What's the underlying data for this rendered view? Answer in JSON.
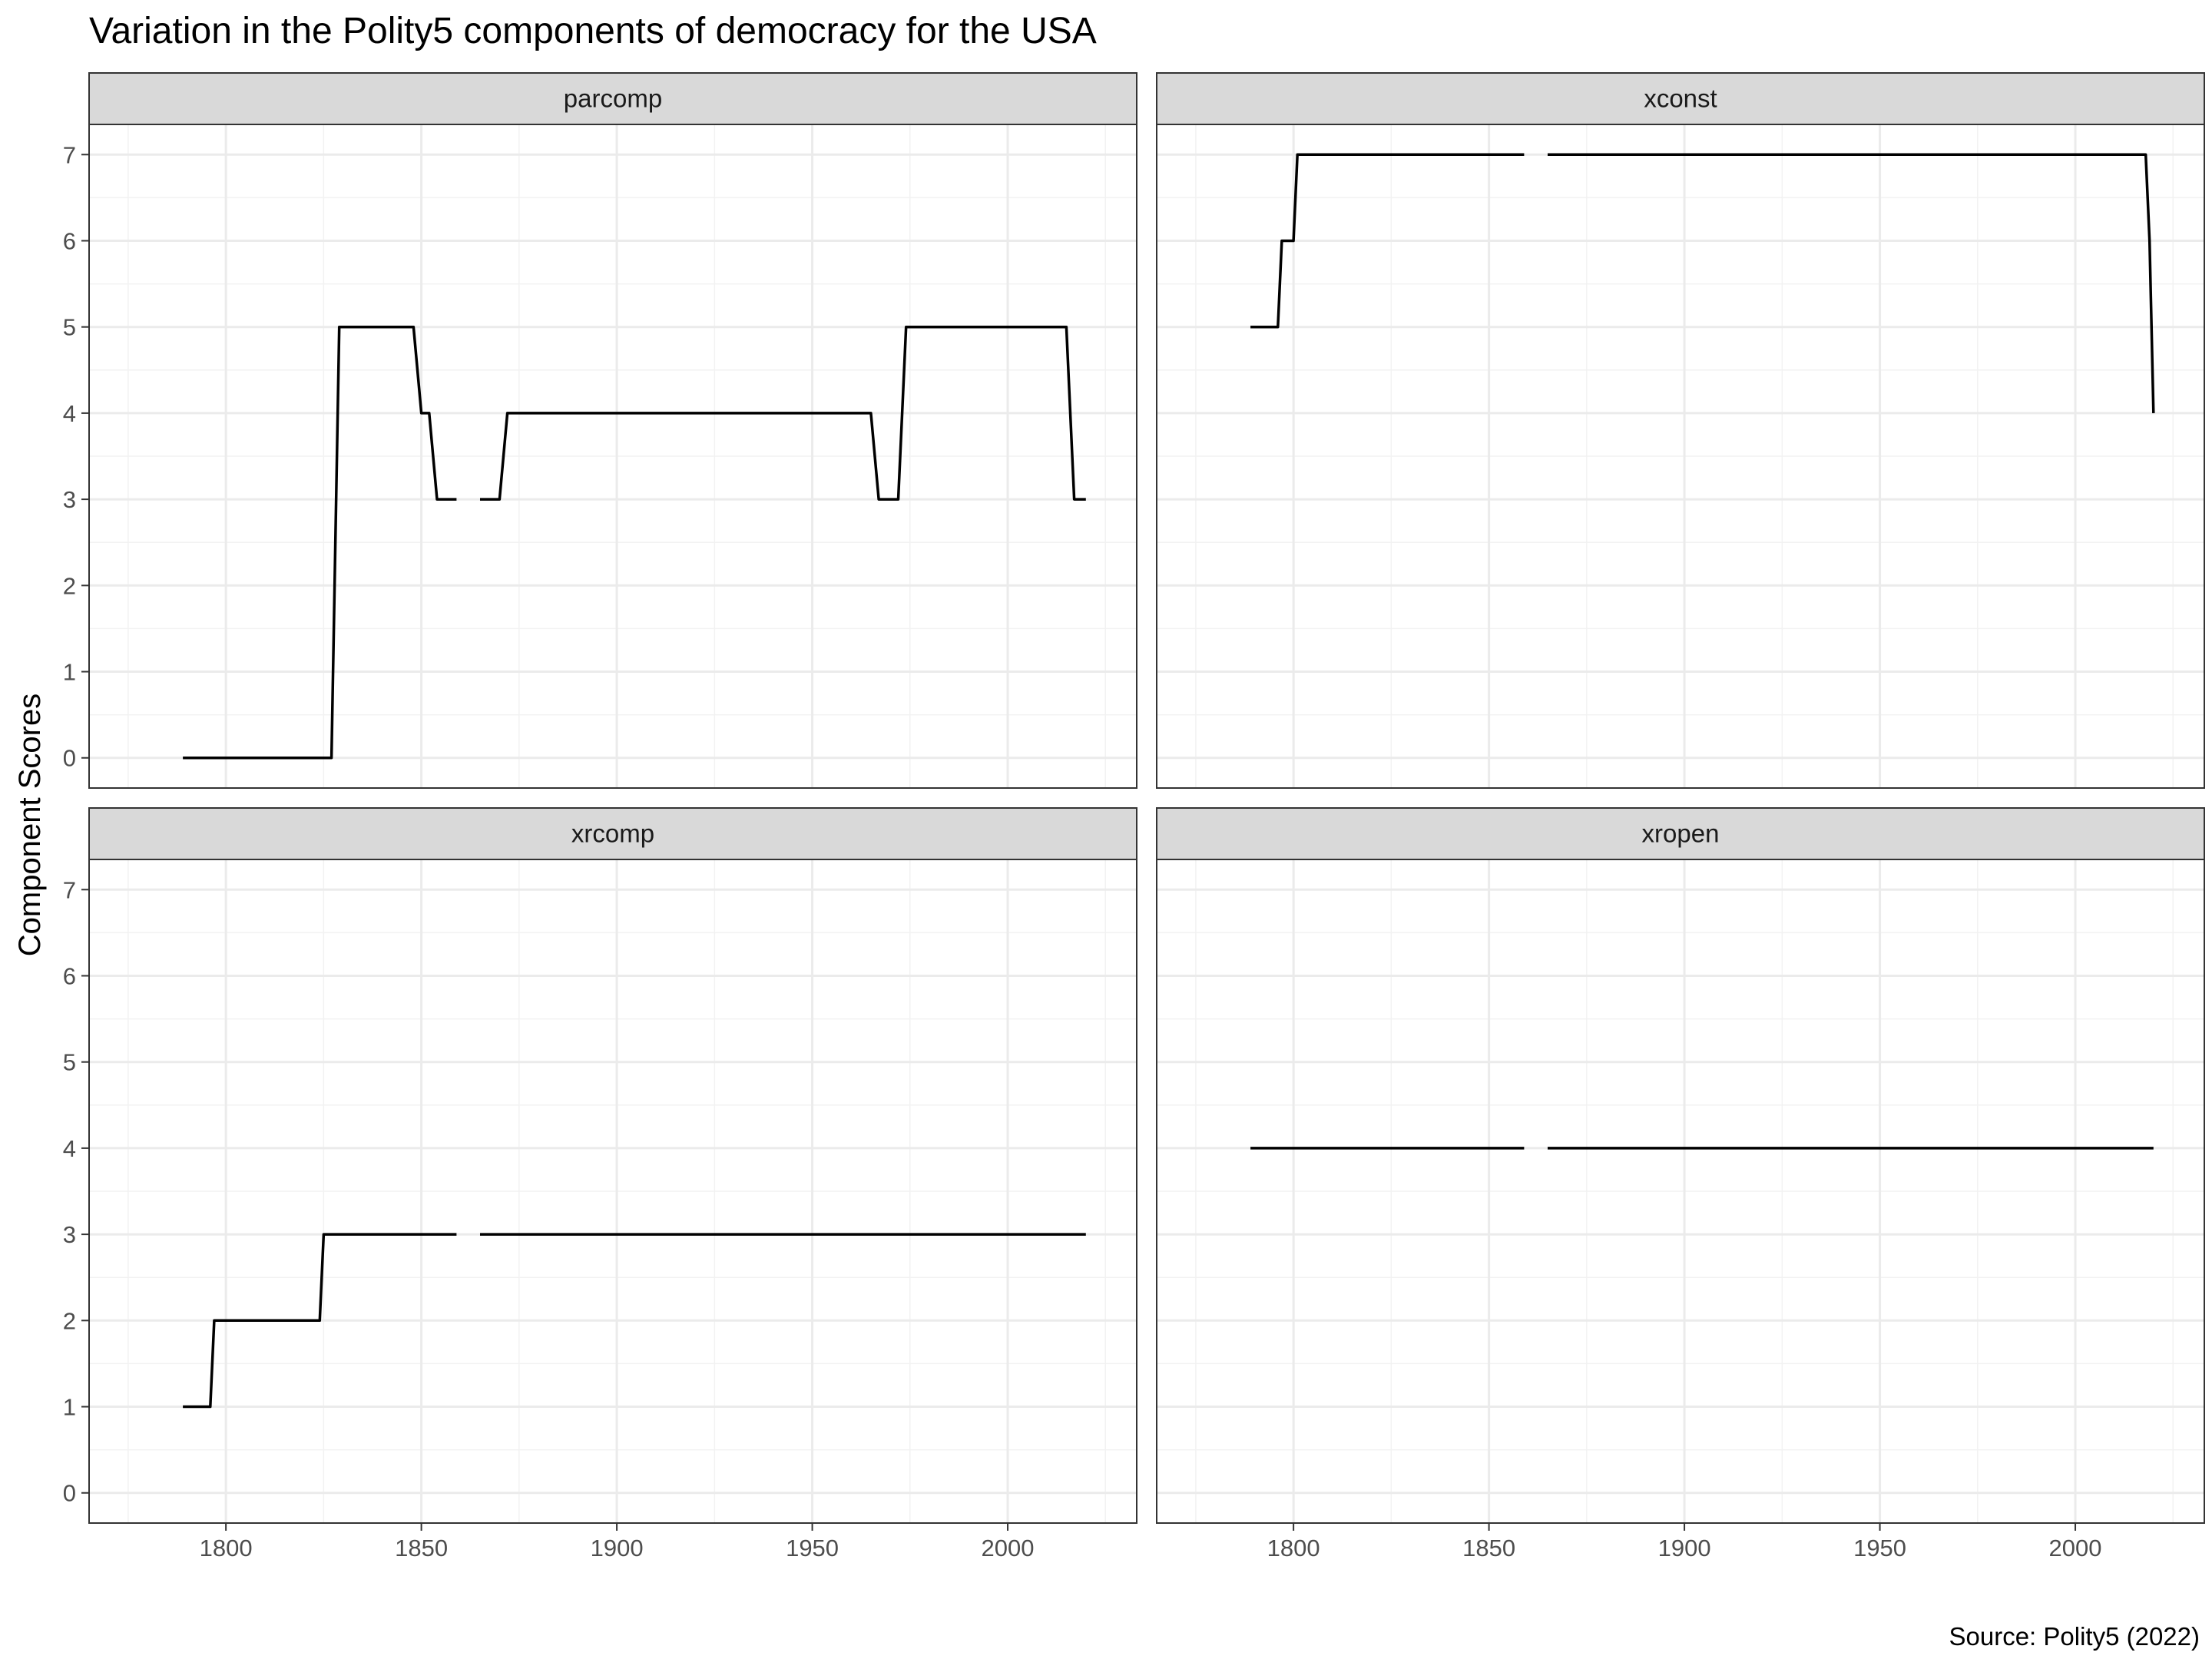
{
  "chart_data": {
    "type": "line",
    "title": "Variation in the Polity5 components of democracy for the USA",
    "ylabel": "Component Scores",
    "xlabel": "",
    "caption": "Source: Polity5 (2022)",
    "xlim": [
      1765,
      2033
    ],
    "ylim": [
      -0.35,
      7.35
    ],
    "x_ticks": [
      1800,
      1850,
      1900,
      1950,
      2000
    ],
    "y_ticks": [
      0,
      1,
      2,
      3,
      4,
      5,
      6,
      7
    ],
    "grid": true,
    "legend": "none",
    "line_color": "#000000",
    "facets": [
      {
        "name": "parcomp",
        "segments": [
          [
            [
              1789,
              0
            ],
            [
              1827,
              0
            ],
            [
              1829,
              5
            ],
            [
              1848,
              5
            ],
            [
              1850,
              4
            ],
            [
              1852,
              4
            ],
            [
              1854,
              3
            ],
            [
              1859,
              3
            ]
          ],
          [
            [
              1865,
              3
            ],
            [
              1870,
              3
            ],
            [
              1872,
              4
            ],
            [
              1965,
              4
            ],
            [
              1967,
              3
            ],
            [
              1972,
              3
            ],
            [
              1974,
              5
            ],
            [
              2015,
              5
            ],
            [
              2017,
              3
            ],
            [
              2020,
              3
            ]
          ]
        ]
      },
      {
        "name": "xconst",
        "segments": [
          [
            [
              1789,
              5
            ],
            [
              1796,
              5
            ],
            [
              1797,
              6
            ],
            [
              1800,
              6
            ],
            [
              1801,
              7
            ],
            [
              1859,
              7
            ]
          ],
          [
            [
              1865,
              7
            ],
            [
              2018,
              7
            ],
            [
              2019,
              6
            ],
            [
              2020,
              4
            ]
          ]
        ]
      },
      {
        "name": "xrcomp",
        "segments": [
          [
            [
              1789,
              1
            ],
            [
              1796,
              1
            ],
            [
              1797,
              2
            ],
            [
              1824,
              2
            ],
            [
              1825,
              3
            ],
            [
              1859,
              3
            ]
          ],
          [
            [
              1865,
              3
            ],
            [
              2020,
              3
            ]
          ]
        ]
      },
      {
        "name": "xropen",
        "segments": [
          [
            [
              1789,
              4
            ],
            [
              1859,
              4
            ]
          ],
          [
            [
              1865,
              4
            ],
            [
              2020,
              4
            ]
          ]
        ]
      }
    ]
  }
}
